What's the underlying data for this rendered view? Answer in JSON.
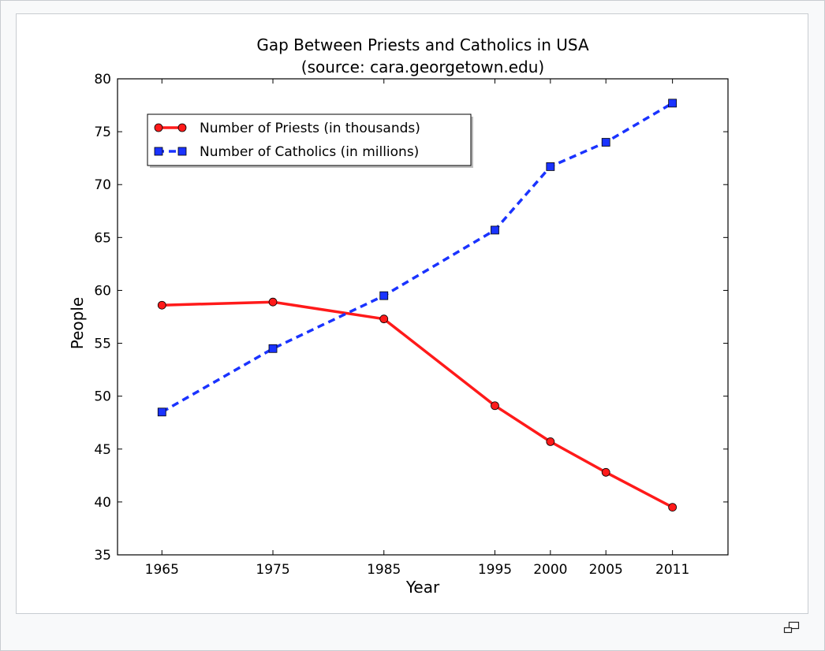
{
  "chart_data": {
    "type": "line",
    "title": "Gap Between Priests and Catholics in USA",
    "subtitle": "(source: cara.georgetown.edu)",
    "xlabel": "Year",
    "ylabel": "People",
    "x": [
      1965,
      1975,
      1985,
      1995,
      2000,
      2005,
      2011
    ],
    "x_ticks": [
      "1965",
      "1975",
      "1985",
      "1995",
      "2000",
      "2005",
      "2011"
    ],
    "xlim": [
      1961,
      2016
    ],
    "ylim": [
      35,
      80
    ],
    "y_ticks": [
      "35",
      "40",
      "45",
      "50",
      "55",
      "60",
      "65",
      "70",
      "75",
      "80"
    ],
    "grid": false,
    "legend_position": "upper-left",
    "series": [
      {
        "name": "Number of Priests (in thousands)",
        "values": [
          58.6,
          58.9,
          57.3,
          49.1,
          45.7,
          42.8,
          39.5
        ],
        "color": "#ff1a1a",
        "marker": "circle",
        "linestyle": "solid"
      },
      {
        "name": "Number of Catholics (in millions)",
        "values": [
          48.5,
          54.5,
          59.5,
          65.7,
          71.7,
          74.0,
          77.7
        ],
        "color": "#1a33ff",
        "marker": "square",
        "linestyle": "dashed"
      }
    ]
  },
  "ui": {
    "magnify_icon": "magnify-clip-icon"
  }
}
